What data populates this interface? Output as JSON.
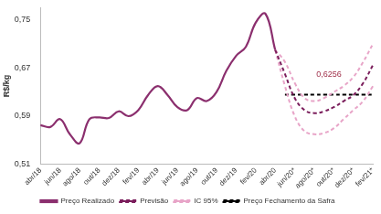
{
  "chart_data": {
    "type": "line",
    "y_label": "R$/kg",
    "categories": [
      "abr/18",
      null,
      "jun/18",
      null,
      "ago/18",
      null,
      "out/18",
      null,
      "dez/18",
      null,
      "fev/19",
      null,
      "abr/19",
      null,
      "jun/19",
      null,
      "ago/19",
      null,
      "out/19",
      null,
      "dez/19",
      null,
      "fev/20",
      null,
      "abr/20",
      null,
      "jun/20*",
      null,
      "ago/20*",
      null,
      "out/20*",
      null,
      "dez/20*",
      null,
      "fev/21*"
    ],
    "series": [
      {
        "name": "Preço Realizado",
        "color": "#8b2f6e",
        "line_style": "solid",
        "marker": "none",
        "values": [
          0.575,
          0.572,
          0.585,
          0.56,
          0.545,
          0.585,
          0.588,
          0.587,
          0.598,
          0.59,
          0.6,
          0.625,
          0.64,
          0.625,
          0.605,
          0.6,
          0.62,
          0.615,
          0.63,
          0.665,
          0.69,
          0.705,
          0.745,
          0.76,
          0.7,
          null,
          null,
          null,
          null,
          null,
          null,
          null,
          null,
          null,
          null
        ]
      },
      {
        "name": "Previsão",
        "color": "#7b1e5c",
        "line_style": "dashed",
        "marker": "none",
        "values": [
          null,
          null,
          null,
          null,
          null,
          null,
          null,
          null,
          null,
          null,
          null,
          null,
          null,
          null,
          null,
          null,
          null,
          null,
          null,
          null,
          null,
          null,
          null,
          null,
          0.7,
          0.66,
          0.62,
          0.6,
          0.595,
          0.598,
          0.605,
          0.615,
          0.625,
          0.645,
          0.675
        ]
      },
      {
        "name": "IC 95%",
        "color": "#e8a5c8",
        "line_style": "dashed",
        "marker": "none",
        "values": [
          null,
          null,
          null,
          null,
          null,
          null,
          null,
          null,
          null,
          null,
          null,
          null,
          null,
          null,
          null,
          null,
          null,
          null,
          null,
          null,
          null,
          null,
          null,
          null,
          0.7,
          0.68,
          0.645,
          0.62,
          0.615,
          0.62,
          0.63,
          0.64,
          0.655,
          0.68,
          0.71
        ]
      },
      {
        "name": "IC 95%",
        "color": "#e8a5c8",
        "line_style": "dashed",
        "marker": "none",
        "values": [
          null,
          null,
          null,
          null,
          null,
          null,
          null,
          null,
          null,
          null,
          null,
          null,
          null,
          null,
          null,
          null,
          null,
          null,
          null,
          null,
          null,
          null,
          null,
          null,
          0.7,
          0.64,
          0.59,
          0.565,
          0.56,
          0.562,
          0.57,
          0.585,
          0.6,
          0.615,
          0.64
        ]
      },
      {
        "name": "Preço Fechamento da Safra",
        "color": "#000000",
        "line_style": "dashed",
        "marker": "none",
        "values": [
          null,
          null,
          null,
          null,
          null,
          null,
          null,
          null,
          null,
          null,
          null,
          null,
          null,
          null,
          null,
          null,
          null,
          null,
          null,
          null,
          null,
          null,
          null,
          null,
          null,
          0.6256,
          0.6256,
          0.6256,
          0.6256,
          0.6256,
          0.6256,
          0.6256,
          0.6256,
          0.6256,
          0.6256
        ]
      }
    ],
    "annotations": [
      {
        "text": "0,6256",
        "y": 0.6256,
        "color": "#a0304a"
      }
    ],
    "ylim": [
      0.51,
      0.77
    ],
    "yticks": [
      {
        "value": 0.51,
        "label": "0,51"
      },
      {
        "value": 0.59,
        "label": "0,59"
      },
      {
        "value": 0.67,
        "label": "0,67"
      },
      {
        "value": 0.75,
        "label": "0,75"
      }
    ],
    "grid": false,
    "legend": "bottom"
  }
}
